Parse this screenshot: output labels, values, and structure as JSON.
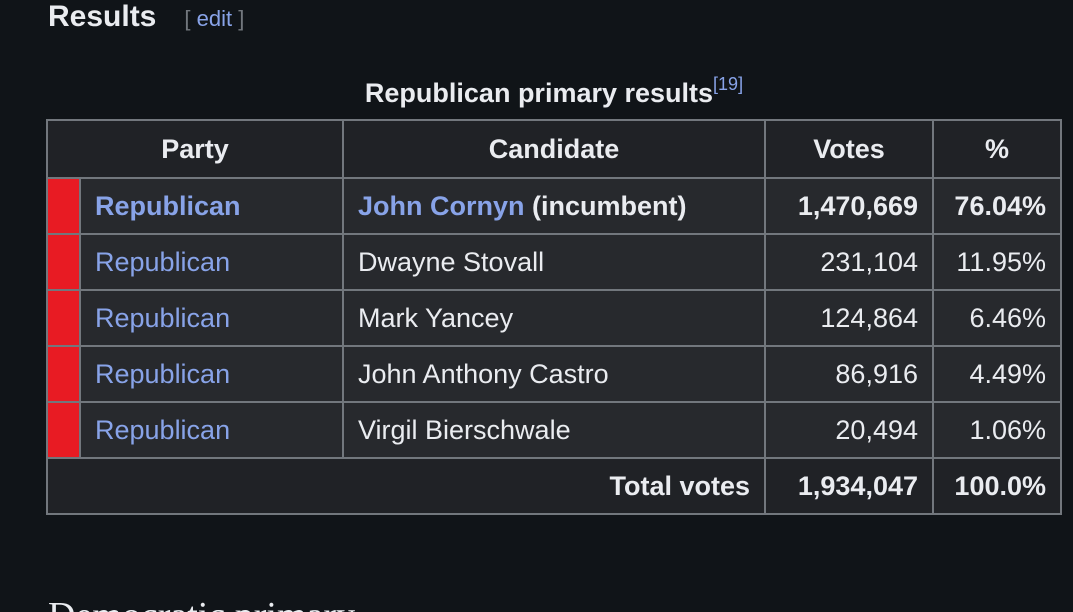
{
  "section": {
    "title": "Results",
    "edit_open": "[",
    "edit_label": "edit",
    "edit_close": "]"
  },
  "table": {
    "caption": "Republican primary results",
    "caption_ref": "[19]",
    "headers": {
      "party": "Party",
      "candidate": "Candidate",
      "votes": "Votes",
      "pct": "%"
    },
    "party_color": "#e81b23",
    "rows": [
      {
        "party": "Republican",
        "candidate": "John Cornyn",
        "candidate_suffix": " (incumbent)",
        "votes": "1,470,669",
        "pct": "76.04%"
      },
      {
        "party": "Republican",
        "candidate": "Dwayne Stovall",
        "votes": "231,104",
        "pct": "11.95%"
      },
      {
        "party": "Republican",
        "candidate": "Mark Yancey",
        "votes": "124,864",
        "pct": "6.46%"
      },
      {
        "party": "Republican",
        "candidate": "John Anthony Castro",
        "votes": "86,916",
        "pct": "4.49%"
      },
      {
        "party": "Republican",
        "candidate": "Virgil Bierschwale",
        "votes": "20,494",
        "pct": "1.06%"
      }
    ],
    "total": {
      "label": "Total votes",
      "votes": "1,934,047",
      "pct": "100.0%"
    }
  },
  "next_section": {
    "title": "Democratic primary"
  }
}
